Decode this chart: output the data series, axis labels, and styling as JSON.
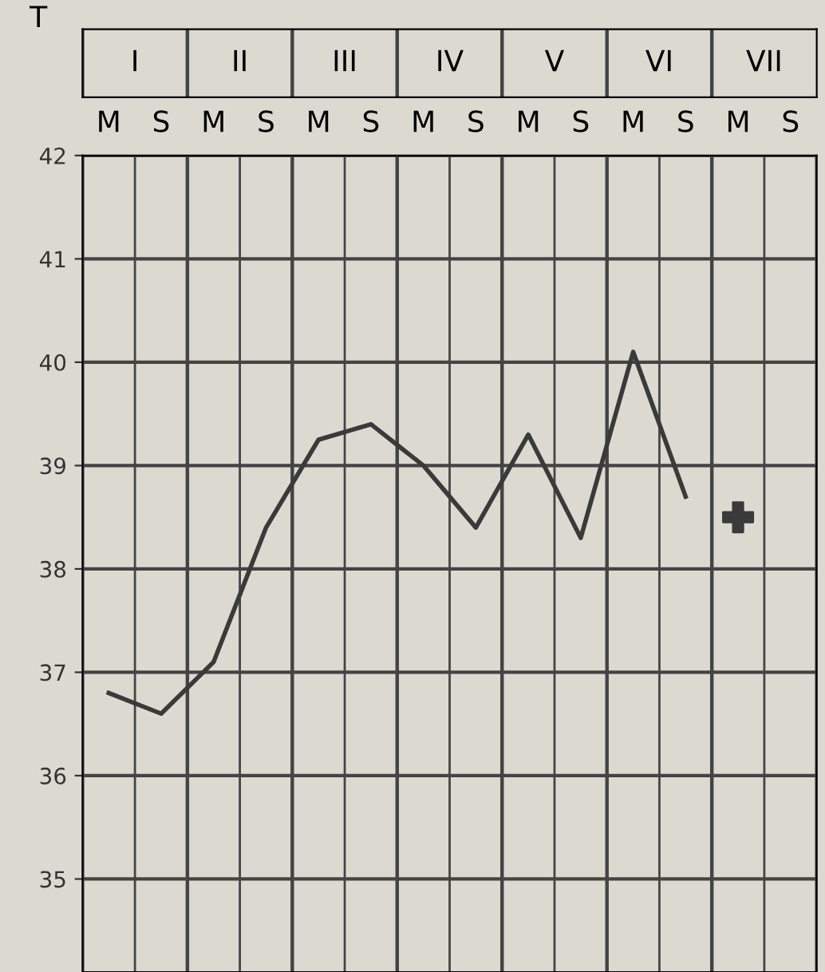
{
  "chart_data": {
    "type": "line",
    "ylabel": "T",
    "categories": [
      "M",
      "S",
      "M",
      "S",
      "M",
      "S",
      "M",
      "S",
      "M",
      "S",
      "M",
      "S",
      "M",
      "S"
    ],
    "annotations": [
      "I",
      "II",
      "III",
      "IV",
      "V",
      "VI",
      "VII"
    ],
    "series": [
      {
        "color": "#3a3a3a",
        "values": [
          36.8,
          36.6,
          37.1,
          38.4,
          39.25,
          39.4,
          39.0,
          38.4,
          39.3,
          38.3,
          40.1,
          38.7,
          null,
          null
        ]
      },
      {
        "type": "scatter",
        "marker": "cross",
        "color": "#3a3a3a",
        "values": [
          null,
          null,
          null,
          null,
          null,
          null,
          null,
          null,
          null,
          null,
          null,
          null,
          38.5,
          null
        ]
      }
    ],
    "ylim": [
      34.1,
      42
    ],
    "yticks": [
      35,
      36,
      37,
      38,
      39,
      40,
      41,
      42
    ],
    "grid": "y"
  }
}
